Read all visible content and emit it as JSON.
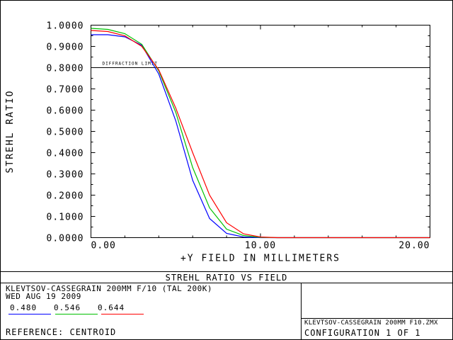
{
  "chart_data": {
    "type": "line",
    "title": "STREHL RATIO VS FIELD",
    "xlabel": "+Y FIELD IN MILLIMETERS",
    "ylabel": "STREHL RATIO",
    "xlim": [
      0,
      20
    ],
    "ylim": [
      0,
      1
    ],
    "x_ticks": [
      "0.00",
      "10.00",
      "20.00"
    ],
    "y_ticks": [
      "0.0000",
      "0.1000",
      "0.2000",
      "0.3000",
      "0.4000",
      "0.5000",
      "0.6000",
      "0.7000",
      "0.8000",
      "0.9000",
      "1.0000"
    ],
    "reference_line": {
      "y": 0.8,
      "label": "DIFFRACTION LIMIT"
    },
    "series": [
      {
        "name": "0.480",
        "color": "#0000ff",
        "x": [
          0,
          1,
          2,
          3,
          4,
          5,
          6,
          7,
          8,
          9,
          10,
          11,
          12,
          13,
          14,
          15,
          16,
          17,
          18,
          19,
          20
        ],
        "y": [
          0.955,
          0.955,
          0.945,
          0.905,
          0.77,
          0.55,
          0.27,
          0.09,
          0.02,
          0.003,
          0.0,
          0,
          0,
          0,
          0,
          0,
          0,
          0,
          0,
          0,
          0
        ]
      },
      {
        "name": "0.546",
        "color": "#00c000",
        "x": [
          0,
          1,
          2,
          3,
          4,
          5,
          6,
          7,
          8,
          9,
          10,
          11,
          12,
          13,
          14,
          15,
          16,
          17,
          18,
          19,
          20
        ],
        "y": [
          0.985,
          0.98,
          0.96,
          0.91,
          0.785,
          0.59,
          0.33,
          0.14,
          0.04,
          0.01,
          0.001,
          0,
          0,
          0,
          0,
          0,
          0,
          0,
          0,
          0,
          0
        ]
      },
      {
        "name": "0.644",
        "color": "#ff0000",
        "x": [
          0,
          1,
          2,
          3,
          4,
          5,
          6,
          7,
          8,
          9,
          10,
          11,
          12,
          13,
          14,
          15,
          16,
          17,
          18,
          19,
          20
        ],
        "y": [
          0.975,
          0.97,
          0.95,
          0.9,
          0.79,
          0.61,
          0.4,
          0.2,
          0.07,
          0.018,
          0.003,
          0,
          0,
          0,
          0,
          0,
          0,
          0,
          0,
          0,
          0
        ]
      }
    ],
    "grid": false,
    "legend_position": "bottom-left"
  },
  "info": {
    "lens": "KLEVTSOV-CASSEGRAIN 200MM F/10 (TAL 200K)",
    "date": "WED AUG 19 2009",
    "reference": "REFERENCE: CENTROID",
    "file": "KLEVTSOV-CASSEGRAIN 200MM F10.ZMX",
    "configuration": "CONFIGURATION  1 OF 1"
  }
}
